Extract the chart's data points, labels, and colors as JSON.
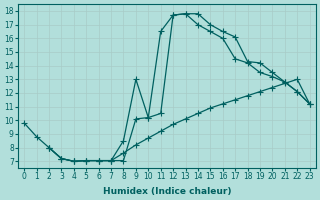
{
  "title": "",
  "xlabel": "Humidex (Indice chaleur)",
  "ylabel": "",
  "background_color": "#b2dfdb",
  "grid_color": "#c8e8e5",
  "line_color": "#006060",
  "xlim": [
    -0.5,
    23.5
  ],
  "ylim": [
    6.5,
    18.5
  ],
  "xticks": [
    0,
    1,
    2,
    3,
    4,
    5,
    6,
    7,
    8,
    9,
    10,
    11,
    12,
    13,
    14,
    15,
    16,
    17,
    18,
    19,
    20,
    21,
    22,
    23
  ],
  "yticks": [
    7,
    8,
    9,
    10,
    11,
    12,
    13,
    14,
    15,
    16,
    17,
    18
  ],
  "line1": {
    "x": [
      0,
      1,
      2,
      3,
      4,
      5,
      6,
      7,
      8,
      9,
      10,
      11,
      12,
      13,
      14,
      15,
      16,
      17,
      18,
      19,
      20,
      21,
      22,
      23
    ],
    "y": [
      9.8,
      8.8,
      8.0,
      7.2,
      7.0,
      7.05,
      7.05,
      7.05,
      7.05,
      10.1,
      10.2,
      16.5,
      17.7,
      17.8,
      17.8,
      17.0,
      16.5,
      16.1,
      14.3,
      14.2,
      13.5,
      12.8,
      12.1,
      11.2
    ]
  },
  "line2": {
    "x": [
      2,
      3,
      4,
      5,
      6,
      7,
      8,
      9,
      10,
      11,
      12,
      13,
      14,
      15,
      16,
      17,
      18,
      19,
      20,
      21,
      22,
      23
    ],
    "y": [
      8.0,
      7.2,
      7.0,
      7.05,
      7.05,
      7.05,
      8.5,
      13.0,
      10.2,
      10.5,
      17.7,
      17.8,
      17.0,
      16.5,
      16.0,
      14.5,
      14.2,
      13.5,
      13.2,
      12.8,
      12.1,
      11.2
    ]
  },
  "line3": {
    "x": [
      2,
      3,
      4,
      5,
      6,
      7,
      8,
      9,
      10,
      11,
      12,
      13,
      14,
      15,
      16,
      17,
      18,
      19,
      20,
      21,
      22,
      23
    ],
    "y": [
      8.0,
      7.2,
      7.0,
      7.05,
      7.05,
      7.05,
      7.6,
      8.2,
      8.7,
      9.2,
      9.7,
      10.1,
      10.5,
      10.9,
      11.2,
      11.5,
      11.8,
      12.1,
      12.4,
      12.7,
      13.0,
      11.2
    ]
  }
}
